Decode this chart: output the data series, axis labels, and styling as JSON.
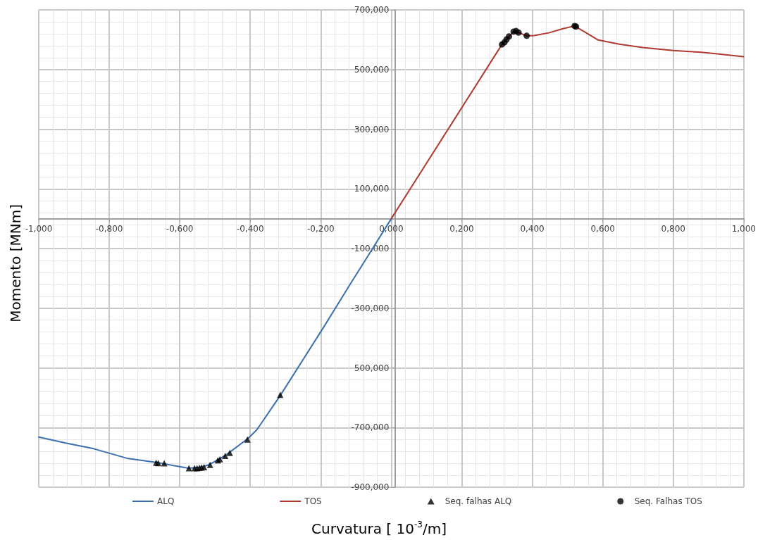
{
  "chart_data": {
    "type": "line",
    "xlabel": "Curvatura [ 10$^{-3}$/m]",
    "ylabel": "Momento [MNm]",
    "xlim": [
      -1,
      1
    ],
    "ylim": [
      -900,
      700
    ],
    "xticks": [
      {
        "value": -1,
        "label": "-1,000"
      },
      {
        "value": -0.8,
        "label": "-0,800"
      },
      {
        "value": -0.6,
        "label": "-0,600"
      },
      {
        "value": -0.4,
        "label": "-0,400"
      },
      {
        "value": -0.2,
        "label": "-0,200"
      },
      {
        "value": 0,
        "label": "0,000"
      },
      {
        "value": 0.2,
        "label": "0,200"
      },
      {
        "value": 0.4,
        "label": "0,400"
      },
      {
        "value": 0.6,
        "label": "0,600"
      },
      {
        "value": 0.8,
        "label": "0,800"
      },
      {
        "value": 1,
        "label": "1,000"
      }
    ],
    "yticks": [
      {
        "value": -900,
        "label": "-900,000"
      },
      {
        "value": -700,
        "label": "-700,000"
      },
      {
        "value": -500,
        "label": "500,000"
      },
      {
        "value": -300,
        "label": "-300,000"
      },
      {
        "value": -100,
        "label": "-100,000"
      },
      {
        "value": 100,
        "label": "100,000"
      },
      {
        "value": 300,
        "label": "300,000"
      },
      {
        "value": 500,
        "label": "500,000"
      },
      {
        "value": 700,
        "label": "700,000"
      }
    ],
    "grid": true,
    "legend": "bottom",
    "marker": "none",
    "line_style": "solid",
    "series": [
      {
        "name": "ALQ",
        "type": "line",
        "color": "#3b6fb0",
        "x": [
          -1,
          -0.924,
          -0.844,
          -0.75,
          -0.667,
          -0.577,
          -0.545,
          -0.517,
          -0.471,
          -0.407,
          -0.381,
          -0.315,
          -0.192,
          -0.112,
          0
        ],
        "values": [
          -732,
          -752,
          -771,
          -803,
          -817,
          -836,
          -834,
          -825,
          -794,
          -737,
          -707,
          -593,
          -364,
          -211,
          0
        ]
      },
      {
        "name": "TOS",
        "type": "line",
        "color": "#b03a30",
        "x": [
          0,
          0.314,
          0.347,
          0.361,
          0.384,
          0.401,
          0.447,
          0.487,
          0.52,
          0.547,
          0.587,
          0.647,
          0.713,
          0.8,
          0.88,
          0.999
        ],
        "values": [
          0,
          584,
          627,
          624,
          613,
          613,
          623,
          637,
          646,
          627,
          599,
          585,
          574,
          564,
          558,
          543
        ]
      },
      {
        "name": "Seq. falhas ALQ",
        "type": "scatter",
        "marker": "triangle",
        "color": "#000000",
        "x": [
          -0.667,
          -0.661,
          -0.644,
          -0.574,
          -0.558,
          -0.551,
          -0.544,
          -0.538,
          -0.531,
          -0.514,
          -0.492,
          -0.486,
          -0.471,
          -0.458,
          -0.408,
          -0.315
        ],
        "values": [
          -818,
          -819,
          -820,
          -836,
          -836,
          -836,
          -835,
          -834,
          -833,
          -825,
          -810,
          -806,
          -795,
          -785,
          -740,
          -590
        ]
      },
      {
        "name": "Seq. Falhas TOS",
        "type": "scatter",
        "marker": "circle",
        "color": "#000000",
        "x": [
          0.314,
          0.321,
          0.327,
          0.334,
          0.347,
          0.354,
          0.361,
          0.384,
          0.52,
          0.524
        ],
        "values": [
          584,
          591,
          601,
          611,
          627,
          629,
          624,
          613,
          646,
          644
        ]
      }
    ]
  }
}
